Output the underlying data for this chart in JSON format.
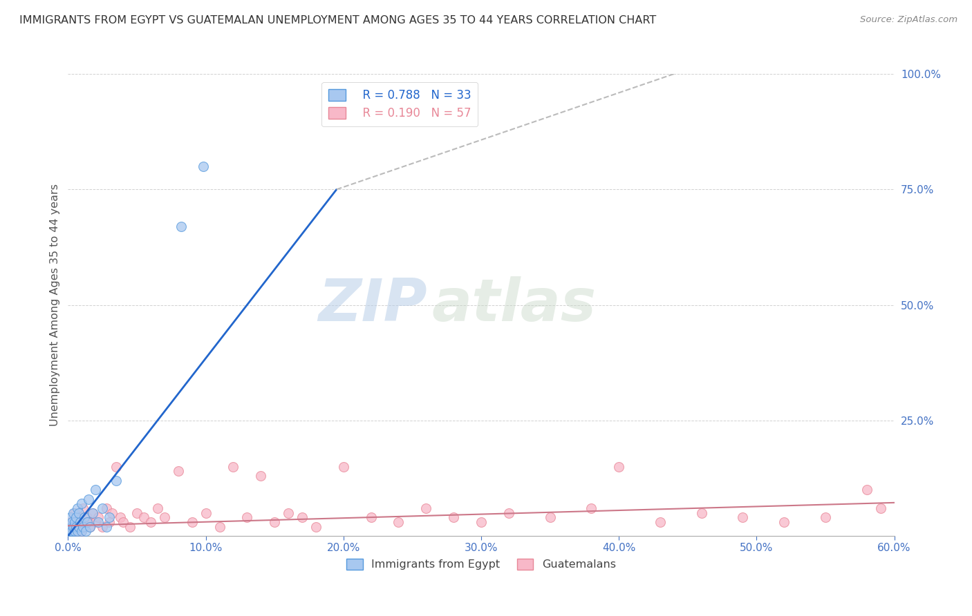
{
  "title": "IMMIGRANTS FROM EGYPT VS GUATEMALAN UNEMPLOYMENT AMONG AGES 35 TO 44 YEARS CORRELATION CHART",
  "source": "Source: ZipAtlas.com",
  "ylabel": "Unemployment Among Ages 35 to 44 years",
  "legend_r_egypt": "R = 0.788",
  "legend_n_egypt": "N = 33",
  "legend_r_guatemalan": "R = 0.190",
  "legend_n_guatemalan": "N = 57",
  "xlim": [
    0.0,
    0.6
  ],
  "ylim": [
    0.0,
    1.0
  ],
  "xticks": [
    0.0,
    0.1,
    0.2,
    0.3,
    0.4,
    0.5,
    0.6
  ],
  "yticks": [
    0.0,
    0.25,
    0.5,
    0.75,
    1.0
  ],
  "egypt_fill_color": "#A8C8F0",
  "egypt_edge_color": "#5599DD",
  "guatemalan_fill_color": "#F8B8C8",
  "guatemalan_edge_color": "#E88898",
  "egypt_line_color": "#2266CC",
  "guatemalan_line_color": "#CC7788",
  "dashed_line_color": "#BBBBBB",
  "egypt_scatter_x": [
    0.001,
    0.002,
    0.002,
    0.003,
    0.003,
    0.004,
    0.004,
    0.005,
    0.005,
    0.006,
    0.006,
    0.007,
    0.007,
    0.008,
    0.008,
    0.009,
    0.01,
    0.01,
    0.011,
    0.012,
    0.013,
    0.014,
    0.015,
    0.016,
    0.018,
    0.02,
    0.022,
    0.025,
    0.028,
    0.03,
    0.035,
    0.082,
    0.098
  ],
  "egypt_scatter_y": [
    0.01,
    0.02,
    0.04,
    0.01,
    0.03,
    0.02,
    0.05,
    0.01,
    0.03,
    0.02,
    0.04,
    0.01,
    0.06,
    0.02,
    0.05,
    0.03,
    0.01,
    0.07,
    0.02,
    0.04,
    0.01,
    0.03,
    0.08,
    0.02,
    0.05,
    0.1,
    0.03,
    0.06,
    0.02,
    0.04,
    0.12,
    0.67,
    0.8
  ],
  "guatemalan_scatter_x": [
    0.002,
    0.004,
    0.005,
    0.006,
    0.007,
    0.008,
    0.009,
    0.01,
    0.011,
    0.012,
    0.014,
    0.015,
    0.016,
    0.018,
    0.02,
    0.022,
    0.025,
    0.028,
    0.03,
    0.032,
    0.035,
    0.038,
    0.04,
    0.045,
    0.05,
    0.055,
    0.06,
    0.065,
    0.07,
    0.08,
    0.09,
    0.1,
    0.11,
    0.12,
    0.13,
    0.14,
    0.15,
    0.16,
    0.17,
    0.18,
    0.2,
    0.22,
    0.24,
    0.26,
    0.28,
    0.3,
    0.32,
    0.35,
    0.38,
    0.4,
    0.43,
    0.46,
    0.49,
    0.52,
    0.55,
    0.58,
    0.59
  ],
  "guatemalan_scatter_y": [
    0.03,
    0.02,
    0.05,
    0.01,
    0.04,
    0.02,
    0.03,
    0.01,
    0.06,
    0.02,
    0.04,
    0.03,
    0.02,
    0.05,
    0.03,
    0.04,
    0.02,
    0.06,
    0.03,
    0.05,
    0.15,
    0.04,
    0.03,
    0.02,
    0.05,
    0.04,
    0.03,
    0.06,
    0.04,
    0.14,
    0.03,
    0.05,
    0.02,
    0.15,
    0.04,
    0.13,
    0.03,
    0.05,
    0.04,
    0.02,
    0.15,
    0.04,
    0.03,
    0.06,
    0.04,
    0.03,
    0.05,
    0.04,
    0.06,
    0.15,
    0.03,
    0.05,
    0.04,
    0.03,
    0.04,
    0.1,
    0.06
  ],
  "egypt_regline_x": [
    0.0,
    0.195
  ],
  "egypt_regline_y": [
    0.0,
    0.75
  ],
  "egypt_dashline_x": [
    0.195,
    0.44
  ],
  "egypt_dashline_y": [
    0.75,
    1.0
  ],
  "guat_regline_x": [
    0.0,
    0.6
  ],
  "guat_regline_y": [
    0.022,
    0.072
  ],
  "watermark_zip": "ZIP",
  "watermark_atlas": "atlas",
  "background_color": "#FFFFFF",
  "grid_color": "#CCCCCC",
  "tick_label_color": "#4472C4",
  "title_color": "#333333",
  "ylabel_color": "#555555"
}
